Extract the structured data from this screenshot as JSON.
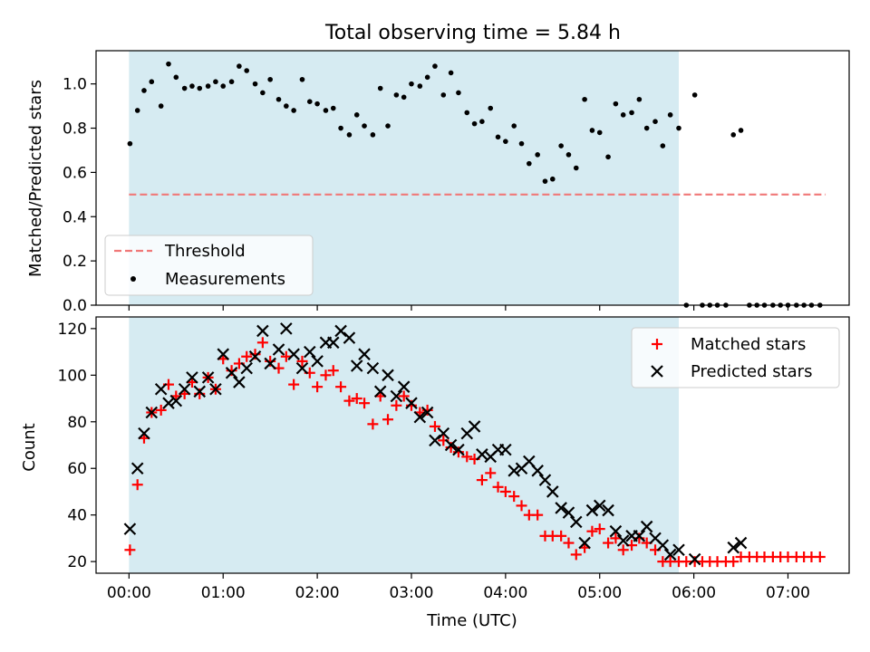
{
  "chart_data": [
    {
      "type": "scatter",
      "title": "Total observing time = 5.84 h",
      "xlabel": "",
      "ylabel": "Matched/Predicted stars",
      "xlim": [
        -0.35,
        7.65
      ],
      "ylim": [
        0,
        1.15
      ],
      "xticks": [
        0,
        1,
        2,
        3,
        4,
        5,
        6,
        7
      ],
      "xticklabels": [
        "",
        "",
        "",
        "",
        "",
        "",
        "",
        ""
      ],
      "yticks": [
        0.0,
        0.2,
        0.4,
        0.6,
        0.8,
        1.0
      ],
      "yticklabels": [
        "0.0",
        "0.2",
        "0.4",
        "0.6",
        "0.8",
        "1.0"
      ],
      "shaded_span": [
        0.0,
        5.84
      ],
      "legend_position": "lower-left",
      "threshold": {
        "name": "Threshold",
        "value": 0.5,
        "x": [
          0.0,
          7.4
        ],
        "color": "#f07878",
        "style": "dashed"
      },
      "series": [
        {
          "name": "Measurements",
          "marker": "dot",
          "color": "#000000",
          "points": [
            [
              0.01,
              0.73
            ],
            [
              0.09,
              0.88
            ],
            [
              0.16,
              0.97
            ],
            [
              0.24,
              1.01
            ],
            [
              0.34,
              0.9
            ],
            [
              0.42,
              1.09
            ],
            [
              0.5,
              1.03
            ],
            [
              0.59,
              0.98
            ],
            [
              0.67,
              0.99
            ],
            [
              0.75,
              0.98
            ],
            [
              0.84,
              0.99
            ],
            [
              0.92,
              1.01
            ],
            [
              1.0,
              0.99
            ],
            [
              1.09,
              1.01
            ],
            [
              1.17,
              1.08
            ],
            [
              1.25,
              1.06
            ],
            [
              1.34,
              1.0
            ],
            [
              1.42,
              0.96
            ],
            [
              1.5,
              1.02
            ],
            [
              1.59,
              0.93
            ],
            [
              1.67,
              0.9
            ],
            [
              1.75,
              0.88
            ],
            [
              1.84,
              1.02
            ],
            [
              1.92,
              0.92
            ],
            [
              2.0,
              0.91
            ],
            [
              2.09,
              0.88
            ],
            [
              2.17,
              0.89
            ],
            [
              2.25,
              0.8
            ],
            [
              2.34,
              0.77
            ],
            [
              2.42,
              0.86
            ],
            [
              2.5,
              0.81
            ],
            [
              2.59,
              0.77
            ],
            [
              2.67,
              0.98
            ],
            [
              2.75,
              0.81
            ],
            [
              2.84,
              0.95
            ],
            [
              2.92,
              0.94
            ],
            [
              3.0,
              1.0
            ],
            [
              3.09,
              0.99
            ],
            [
              3.17,
              1.03
            ],
            [
              3.25,
              1.08
            ],
            [
              3.34,
              0.95
            ],
            [
              3.42,
              1.05
            ],
            [
              3.5,
              0.96
            ],
            [
              3.59,
              0.87
            ],
            [
              3.67,
              0.82
            ],
            [
              3.75,
              0.83
            ],
            [
              3.84,
              0.89
            ],
            [
              3.92,
              0.76
            ],
            [
              4.0,
              0.74
            ],
            [
              4.09,
              0.81
            ],
            [
              4.17,
              0.73
            ],
            [
              4.25,
              0.64
            ],
            [
              4.34,
              0.68
            ],
            [
              4.42,
              0.56
            ],
            [
              4.5,
              0.57
            ],
            [
              4.59,
              0.72
            ],
            [
              4.67,
              0.68
            ],
            [
              4.75,
              0.62
            ],
            [
              4.84,
              0.93
            ],
            [
              4.92,
              0.79
            ],
            [
              5.0,
              0.78
            ],
            [
              5.09,
              0.67
            ],
            [
              5.17,
              0.91
            ],
            [
              5.25,
              0.86
            ],
            [
              5.34,
              0.87
            ],
            [
              5.42,
              0.93
            ],
            [
              5.5,
              0.8
            ],
            [
              5.59,
              0.83
            ],
            [
              5.67,
              0.72
            ],
            [
              5.75,
              0.86
            ],
            [
              5.84,
              0.8
            ],
            [
              5.92,
              0.0
            ],
            [
              6.01,
              0.95
            ],
            [
              6.09,
              0.0
            ],
            [
              6.17,
              0.0
            ],
            [
              6.25,
              0.0
            ],
            [
              6.34,
              0.0
            ],
            [
              6.42,
              0.77
            ],
            [
              6.5,
              0.79
            ],
            [
              6.59,
              0.0
            ],
            [
              6.67,
              0.0
            ],
            [
              6.75,
              0.0
            ],
            [
              6.84,
              0.0
            ],
            [
              6.92,
              0.0
            ],
            [
              7.0,
              0.0
            ],
            [
              7.09,
              0.0
            ],
            [
              7.17,
              0.0
            ],
            [
              7.25,
              0.0
            ],
            [
              7.34,
              0.0
            ]
          ]
        }
      ]
    },
    {
      "type": "scatter",
      "title": "",
      "xlabel": "Time (UTC)",
      "ylabel": "Count",
      "xlim": [
        -0.35,
        7.65
      ],
      "ylim": [
        15,
        125
      ],
      "xticks": [
        0,
        1,
        2,
        3,
        4,
        5,
        6,
        7
      ],
      "xticklabels": [
        "00:00",
        "01:00",
        "02:00",
        "03:00",
        "04:00",
        "05:00",
        "06:00",
        "07:00"
      ],
      "yticks": [
        20,
        40,
        60,
        80,
        100,
        120
      ],
      "yticklabels": [
        "20",
        "40",
        "60",
        "80",
        "100",
        "120"
      ],
      "shaded_span": [
        0.0,
        5.84
      ],
      "legend_position": "upper-right",
      "series": [
        {
          "name": "Matched stars",
          "marker": "plus",
          "color": "#ff0000",
          "points": [
            [
              0.01,
              25
            ],
            [
              0.09,
              53
            ],
            [
              0.16,
              73
            ],
            [
              0.24,
              84
            ],
            [
              0.34,
              85
            ],
            [
              0.42,
              96
            ],
            [
              0.5,
              91
            ],
            [
              0.59,
              92
            ],
            [
              0.67,
              97
            ],
            [
              0.75,
              92
            ],
            [
              0.84,
              99
            ],
            [
              0.92,
              94
            ],
            [
              1.0,
              107
            ],
            [
              1.09,
              102
            ],
            [
              1.17,
              105
            ],
            [
              1.25,
              108
            ],
            [
              1.34,
              109
            ],
            [
              1.42,
              114
            ],
            [
              1.5,
              106
            ],
            [
              1.59,
              103
            ],
            [
              1.67,
              108
            ],
            [
              1.75,
              96
            ],
            [
              1.84,
              106
            ],
            [
              1.92,
              101
            ],
            [
              2.0,
              95
            ],
            [
              2.09,
              100
            ],
            [
              2.17,
              102
            ],
            [
              2.25,
              95
            ],
            [
              2.34,
              89
            ],
            [
              2.42,
              90
            ],
            [
              2.5,
              88
            ],
            [
              2.59,
              79
            ],
            [
              2.67,
              91
            ],
            [
              2.75,
              81
            ],
            [
              2.84,
              87
            ],
            [
              2.92,
              91
            ],
            [
              3.0,
              87
            ],
            [
              3.09,
              84
            ],
            [
              3.17,
              85
            ],
            [
              3.25,
              78
            ],
            [
              3.34,
              72
            ],
            [
              3.42,
              69
            ],
            [
              3.5,
              67
            ],
            [
              3.59,
              65
            ],
            [
              3.67,
              64
            ],
            [
              3.75,
              55
            ],
            [
              3.84,
              58
            ],
            [
              3.92,
              52
            ],
            [
              4.0,
              50
            ],
            [
              4.09,
              48
            ],
            [
              4.17,
              44
            ],
            [
              4.25,
              40
            ],
            [
              4.34,
              40
            ],
            [
              4.42,
              31
            ],
            [
              4.5,
              31
            ],
            [
              4.59,
              31
            ],
            [
              4.67,
              28
            ],
            [
              4.75,
              23
            ],
            [
              4.84,
              26
            ],
            [
              4.92,
              33
            ],
            [
              5.0,
              34
            ],
            [
              5.09,
              28
            ],
            [
              5.17,
              30
            ],
            [
              5.25,
              25
            ],
            [
              5.34,
              27
            ],
            [
              5.42,
              30
            ],
            [
              5.5,
              28
            ],
            [
              5.59,
              25
            ],
            [
              5.67,
              20
            ],
            [
              5.75,
              20
            ],
            [
              5.84,
              20
            ],
            [
              5.92,
              20
            ],
            [
              6.01,
              20
            ],
            [
              6.09,
              20
            ],
            [
              6.17,
              20
            ],
            [
              6.25,
              20
            ],
            [
              6.34,
              20
            ],
            [
              6.42,
              20
            ],
            [
              6.5,
              22
            ],
            [
              6.59,
              22
            ],
            [
              6.67,
              22
            ],
            [
              6.75,
              22
            ],
            [
              6.84,
              22
            ],
            [
              6.92,
              22
            ],
            [
              7.0,
              22
            ],
            [
              7.09,
              22
            ],
            [
              7.17,
              22
            ],
            [
              7.25,
              22
            ],
            [
              7.34,
              22
            ]
          ]
        },
        {
          "name": "Predicted stars",
          "marker": "x",
          "color": "#000000",
          "points": [
            [
              0.01,
              34
            ],
            [
              0.09,
              60
            ],
            [
              0.16,
              75
            ],
            [
              0.24,
              84
            ],
            [
              0.34,
              94
            ],
            [
              0.42,
              88
            ],
            [
              0.5,
              89
            ],
            [
              0.59,
              94
            ],
            [
              0.67,
              99
            ],
            [
              0.75,
              93
            ],
            [
              0.84,
              99
            ],
            [
              0.92,
              94
            ],
            [
              1.0,
              109
            ],
            [
              1.09,
              101
            ],
            [
              1.17,
              97
            ],
            [
              1.25,
              103
            ],
            [
              1.34,
              108
            ],
            [
              1.42,
              119
            ],
            [
              1.5,
              105
            ],
            [
              1.59,
              111
            ],
            [
              1.67,
              120
            ],
            [
              1.75,
              109
            ],
            [
              1.84,
              103
            ],
            [
              1.92,
              110
            ],
            [
              2.0,
              106
            ],
            [
              2.09,
              114
            ],
            [
              2.17,
              114
            ],
            [
              2.25,
              119
            ],
            [
              2.34,
              116
            ],
            [
              2.42,
              104
            ],
            [
              2.5,
              109
            ],
            [
              2.59,
              103
            ],
            [
              2.67,
              93
            ],
            [
              2.75,
              100
            ],
            [
              2.84,
              91
            ],
            [
              2.92,
              95
            ],
            [
              3.0,
              88
            ],
            [
              3.09,
              82
            ],
            [
              3.17,
              84
            ],
            [
              3.25,
              72
            ],
            [
              3.34,
              75
            ],
            [
              3.42,
              70
            ],
            [
              3.5,
              68
            ],
            [
              3.59,
              75
            ],
            [
              3.67,
              78
            ],
            [
              3.75,
              66
            ],
            [
              3.84,
              65
            ],
            [
              3.92,
              68
            ],
            [
              4.0,
              68
            ],
            [
              4.09,
              59
            ],
            [
              4.17,
              60
            ],
            [
              4.25,
              63
            ],
            [
              4.34,
              59
            ],
            [
              4.42,
              55
            ],
            [
              4.5,
              50
            ],
            [
              4.59,
              43
            ],
            [
              4.67,
              41
            ],
            [
              4.75,
              37
            ],
            [
              4.84,
              28
            ],
            [
              4.92,
              42
            ],
            [
              5.0,
              44
            ],
            [
              5.09,
              42
            ],
            [
              5.17,
              33
            ],
            [
              5.25,
              29
            ],
            [
              5.34,
              31
            ],
            [
              5.42,
              31
            ],
            [
              5.5,
              35
            ],
            [
              5.59,
              30
            ],
            [
              5.67,
              27
            ],
            [
              5.75,
              23
            ],
            [
              5.84,
              25
            ],
            [
              6.01,
              21
            ],
            [
              6.42,
              26
            ],
            [
              6.5,
              28
            ]
          ]
        }
      ]
    }
  ]
}
